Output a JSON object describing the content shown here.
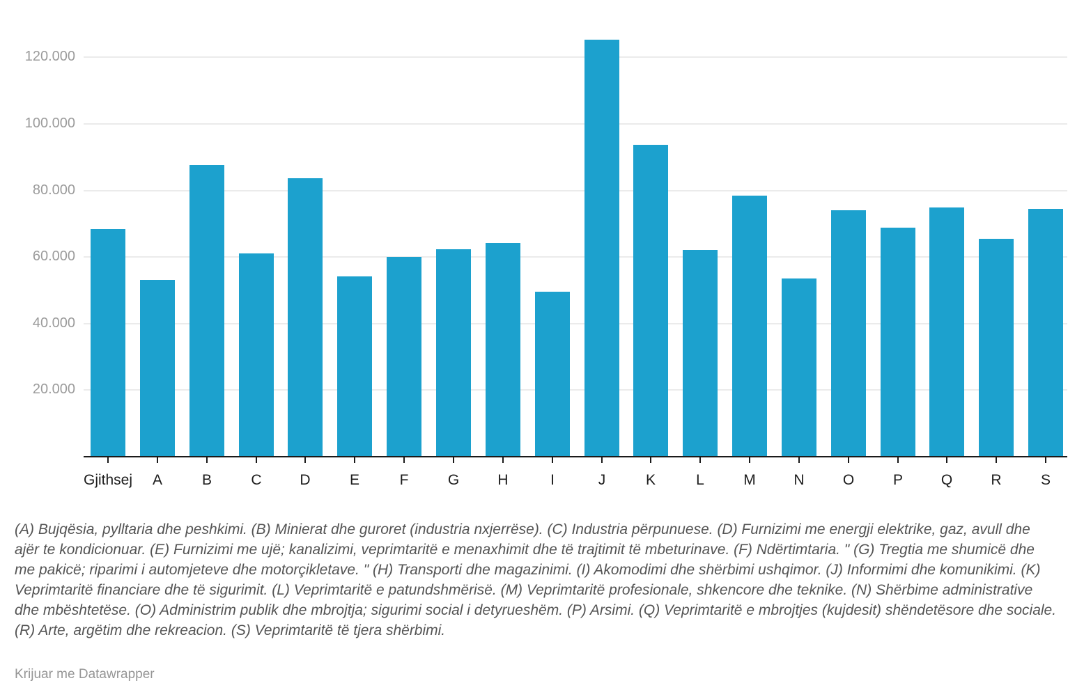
{
  "chart_data": {
    "type": "bar",
    "title": "",
    "xlabel": "",
    "ylabel": "",
    "categories": [
      "Gjithsej",
      "A",
      "B",
      "C",
      "D",
      "E",
      "F",
      "G",
      "H",
      "I",
      "J",
      "K",
      "L",
      "M",
      "N",
      "O",
      "P",
      "Q",
      "R",
      "S"
    ],
    "values": [
      68400,
      53100,
      87600,
      61100,
      83600,
      54200,
      60000,
      62300,
      64200,
      49600,
      125300,
      93700,
      62100,
      78400,
      53500,
      74000,
      68800,
      74900,
      65400,
      74500
    ],
    "ylim": [
      0,
      129000
    ],
    "y_ticks": [
      20000,
      40000,
      60000,
      80000,
      100000,
      120000
    ],
    "y_tick_labels": [
      "20.000",
      "40.000",
      "60.000",
      "80.000",
      "100.000",
      "120.000"
    ],
    "grid": true,
    "legend": false,
    "bar_color": "#1ca1ce"
  },
  "footnote": "(A) Bujqësia, pylltaria dhe peshkimi. (B) Minierat dhe guroret (industria nxjerrëse). (C) Industria përpunuese. (D) Furnizimi me energji elektrike, gaz, avull dhe ajër te kondicionuar. (E) Furnizimi me ujë; kanalizimi, veprimtaritë e menaxhimit dhe të trajtimit të mbeturinave. (F) Ndërtimtaria. \" (G) Tregtia me shumicë dhe me pakicë; riparimi i automjeteve dhe motorçikletave. \" (H) Transporti dhe magazinimi. (I) Akomodimi dhe shërbimi ushqimor. (J) Informimi dhe komunikimi. (K) Veprimtaritë financiare dhe të sigurimit. (L) Veprimtaritë e patundshmërisë. (M) Veprimtaritë profesionale, shkencore dhe teknike. (N) Shërbime administrative dhe mbështetëse. (O) Administrim publik dhe mbrojtja; sigurimi social i detyrueshëm. (P) Arsimi. (Q) Veprimtaritë e mbrojtjes (kujdesit) shëndetësore dhe sociale. (R) Arte, argëtim dhe rekreacion. (S) Veprimtaritë të tjera shërbimi.",
  "credit": "Krijuar me Datawrapper",
  "colors": {
    "bar": "#1ca1ce",
    "grid": "#ebebeb",
    "axis": "#1a1a1a",
    "y_label": "#9b9b9b",
    "x_label": "#1d1d1d",
    "footnote": "#545454",
    "credit": "#969696",
    "background": "#ffffff"
  }
}
